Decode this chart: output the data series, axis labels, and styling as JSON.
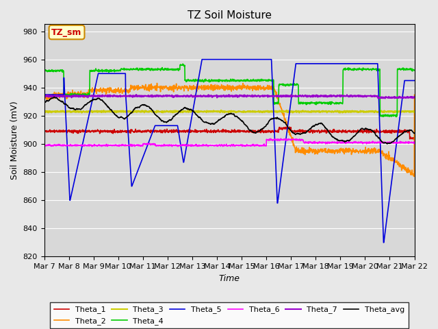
{
  "title": "TZ Soil Moisture",
  "ylabel": "Soil Moisture (mV)",
  "xlabel": "Time",
  "ylim": [
    820,
    985
  ],
  "xlim": [
    0,
    15
  ],
  "x_tick_labels": [
    "Mar 7",
    "Mar 8",
    "Mar 9",
    "Mar 10",
    "Mar 11",
    "Mar 12",
    "Mar 13",
    "Mar 14",
    "Mar 15",
    "Mar 16",
    "Mar 17",
    "Mar 18",
    "Mar 19",
    "Mar 20",
    "Mar 21",
    "Mar 22"
  ],
  "background_color": "#e8e8e8",
  "plot_bg_color": "#d8d8d8",
  "legend_label": "TZ_sm",
  "colors": {
    "Theta_1": "#cc0000",
    "Theta_2": "#ff8c00",
    "Theta_3": "#cccc00",
    "Theta_4": "#00cc00",
    "Theta_5": "#0000dd",
    "Theta_6": "#ff00ff",
    "Theta_7": "#9900cc",
    "Theta_avg": "#000000"
  }
}
